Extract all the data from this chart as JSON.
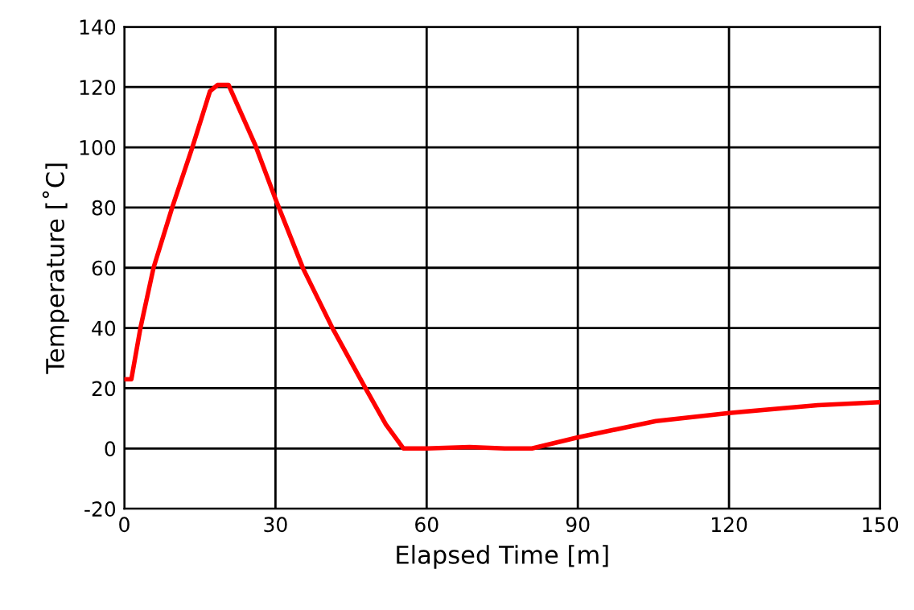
{
  "chart_data": {
    "type": "line",
    "xlabel": "Elapsed Time [m]",
    "ylabel": "Temperature [˚C]",
    "series": [
      {
        "color": "#ff0000",
        "x": [
          0,
          1.4,
          3.2,
          5.8,
          9.5,
          13.5,
          17,
          18.5,
          20.7,
          22.2,
          26,
          30.2,
          35.5,
          41.3,
          47.7,
          51.9,
          55.4,
          60,
          68.5,
          75.5,
          80.9,
          90,
          105.5,
          120,
          137.6,
          150
        ],
        "values": [
          23,
          23,
          40,
          60,
          80,
          100,
          118.6,
          120.7,
          120.7,
          115,
          100.7,
          82,
          59.7,
          40,
          20.5,
          8,
          0,
          0,
          0.5,
          0,
          0,
          3.7,
          9.1,
          11.8,
          14.4,
          15.4
        ]
      }
    ],
    "xlim": [
      0,
      150
    ],
    "xticks": [
      0,
      30,
      60,
      90,
      120,
      150
    ],
    "ylim": [
      -20,
      140
    ],
    "yticks": [
      -20,
      0,
      20,
      40,
      60,
      80,
      100,
      120,
      140
    ],
    "grid": true,
    "marker": "none",
    "line_style": "solid"
  }
}
